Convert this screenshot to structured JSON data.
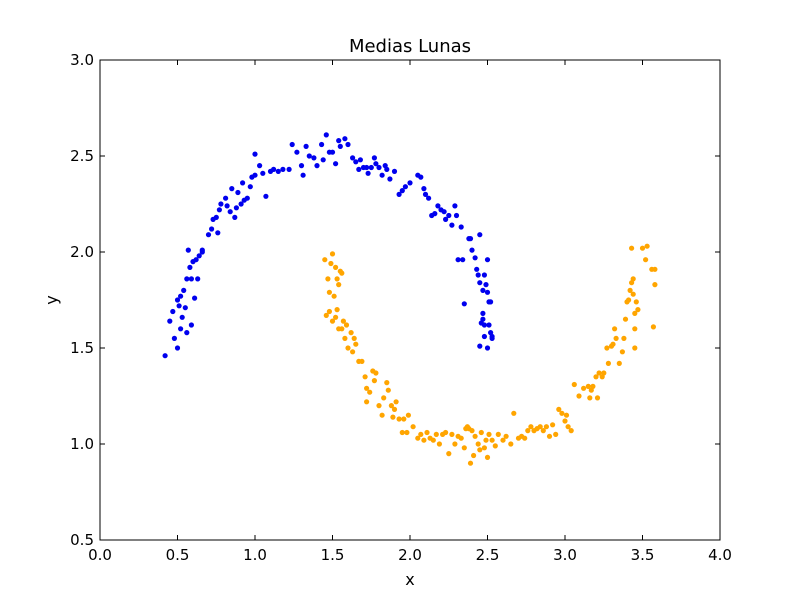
{
  "chart_data": {
    "type": "scatter",
    "title": "Medias Lunas",
    "xlabel": "x",
    "ylabel": "y",
    "xlim": [
      0.0,
      4.0
    ],
    "ylim": [
      0.5,
      3.0
    ],
    "grid": false,
    "xticks": [
      "0.0",
      "0.5",
      "1.0",
      "1.5",
      "2.0",
      "2.5",
      "3.0",
      "3.5",
      "4.0"
    ],
    "yticks": [
      "0.5",
      "1.0",
      "1.5",
      "2.0",
      "2.5",
      "3.0"
    ],
    "series": [
      {
        "color": "#0000ee",
        "points": [
          [
            0.42,
            1.46
          ],
          [
            0.45,
            1.64
          ],
          [
            0.47,
            1.69
          ],
          [
            0.48,
            1.55
          ],
          [
            0.5,
            1.5
          ],
          [
            0.5,
            1.75
          ],
          [
            0.51,
            1.72
          ],
          [
            0.52,
            1.6
          ],
          [
            0.52,
            1.77
          ],
          [
            0.53,
            1.66
          ],
          [
            0.54,
            1.8
          ],
          [
            0.55,
            1.71
          ],
          [
            0.56,
            1.58
          ],
          [
            0.56,
            1.86
          ],
          [
            0.57,
            2.01
          ],
          [
            0.58,
            1.92
          ],
          [
            0.59,
            1.62
          ],
          [
            0.59,
            1.86
          ],
          [
            0.6,
            1.95
          ],
          [
            0.61,
            1.76
          ],
          [
            0.62,
            1.96
          ],
          [
            0.63,
            1.86
          ],
          [
            0.64,
            1.98
          ],
          [
            0.66,
            2.0
          ],
          [
            0.66,
            2.01
          ],
          [
            0.7,
            2.09
          ],
          [
            0.72,
            2.12
          ],
          [
            0.73,
            2.17
          ],
          [
            0.75,
            2.18
          ],
          [
            0.76,
            2.1
          ],
          [
            0.77,
            2.22
          ],
          [
            0.78,
            2.25
          ],
          [
            0.81,
            2.28
          ],
          [
            0.82,
            2.24
          ],
          [
            0.84,
            2.21
          ],
          [
            0.85,
            2.33
          ],
          [
            0.87,
            2.18
          ],
          [
            0.88,
            2.23
          ],
          [
            0.89,
            2.31
          ],
          [
            0.91,
            2.25
          ],
          [
            0.92,
            2.36
          ],
          [
            0.93,
            2.27
          ],
          [
            0.95,
            2.28
          ],
          [
            0.97,
            2.34
          ],
          [
            0.98,
            2.39
          ],
          [
            1.0,
            2.51
          ],
          [
            1.0,
            2.4
          ],
          [
            1.03,
            2.45
          ],
          [
            1.05,
            2.41
          ],
          [
            1.07,
            2.29
          ],
          [
            1.1,
            2.42
          ],
          [
            1.12,
            2.43
          ],
          [
            1.15,
            2.42
          ],
          [
            1.18,
            2.43
          ],
          [
            1.22,
            2.43
          ],
          [
            1.24,
            2.56
          ],
          [
            1.27,
            2.52
          ],
          [
            1.3,
            2.45
          ],
          [
            1.31,
            2.4
          ],
          [
            1.33,
            2.55
          ],
          [
            1.35,
            2.5
          ],
          [
            1.38,
            2.49
          ],
          [
            1.4,
            2.45
          ],
          [
            1.43,
            2.56
          ],
          [
            1.44,
            2.48
          ],
          [
            1.46,
            2.61
          ],
          [
            1.48,
            2.52
          ],
          [
            1.5,
            2.52
          ],
          [
            1.52,
            2.46
          ],
          [
            1.54,
            2.58
          ],
          [
            1.55,
            2.55
          ],
          [
            1.58,
            2.59
          ],
          [
            1.6,
            2.56
          ],
          [
            1.63,
            2.49
          ],
          [
            1.65,
            2.47
          ],
          [
            1.67,
            2.43
          ],
          [
            1.68,
            2.48
          ],
          [
            1.7,
            2.44
          ],
          [
            1.72,
            2.44
          ],
          [
            1.73,
            2.41
          ],
          [
            1.75,
            2.44
          ],
          [
            1.77,
            2.49
          ],
          [
            1.78,
            2.46
          ],
          [
            1.8,
            2.44
          ],
          [
            1.82,
            2.4
          ],
          [
            1.84,
            2.45
          ],
          [
            1.85,
            2.43
          ],
          [
            1.87,
            2.38
          ],
          [
            1.9,
            2.42
          ],
          [
            1.93,
            2.3
          ],
          [
            1.95,
            2.32
          ],
          [
            1.97,
            2.34
          ],
          [
            2.0,
            2.36
          ],
          [
            2.05,
            2.4
          ],
          [
            2.07,
            2.39
          ],
          [
            2.09,
            2.33
          ],
          [
            2.1,
            2.3
          ],
          [
            2.12,
            2.28
          ],
          [
            2.14,
            2.19
          ],
          [
            2.16,
            2.2
          ],
          [
            2.18,
            2.24
          ],
          [
            2.2,
            2.22
          ],
          [
            2.22,
            2.21
          ],
          [
            2.23,
            2.17
          ],
          [
            2.25,
            2.19
          ],
          [
            2.27,
            2.14
          ],
          [
            2.29,
            2.24
          ],
          [
            2.3,
            2.19
          ],
          [
            2.31,
            1.96
          ],
          [
            2.33,
            2.13
          ],
          [
            2.34,
            1.96
          ],
          [
            2.35,
            1.73
          ],
          [
            2.38,
            2.07
          ],
          [
            2.39,
            2.07
          ],
          [
            2.4,
            2.01
          ],
          [
            2.42,
            1.97
          ],
          [
            2.43,
            1.91
          ],
          [
            2.44,
            1.88
          ],
          [
            2.45,
            2.09
          ],
          [
            2.45,
            1.84
          ],
          [
            2.46,
            1.63
          ],
          [
            2.47,
            1.8
          ],
          [
            2.47,
            1.68
          ],
          [
            2.48,
            1.62
          ],
          [
            2.48,
            1.56
          ],
          [
            2.48,
            1.88
          ],
          [
            2.49,
            1.83
          ],
          [
            2.5,
            1.96
          ],
          [
            2.5,
            1.79
          ],
          [
            2.51,
            1.74
          ],
          [
            2.51,
            1.62
          ],
          [
            2.52,
            1.58
          ],
          [
            2.52,
            1.74
          ],
          [
            2.53,
            1.56
          ],
          [
            2.53,
            1.55
          ],
          [
            2.45,
            1.51
          ],
          [
            2.5,
            1.5
          ],
          [
            2.47,
            1.65
          ]
        ]
      },
      {
        "color": "#ffa500",
        "points": [
          [
            1.45,
            1.96
          ],
          [
            1.47,
            1.86
          ],
          [
            1.48,
            1.79
          ],
          [
            1.49,
            1.94
          ],
          [
            1.5,
            1.99
          ],
          [
            1.51,
            1.77
          ],
          [
            1.52,
            1.92
          ],
          [
            1.53,
            1.86
          ],
          [
            1.54,
            1.83
          ],
          [
            1.55,
            1.9
          ],
          [
            1.56,
            1.89
          ],
          [
            1.46,
            1.67
          ],
          [
            1.48,
            1.69
          ],
          [
            1.5,
            1.64
          ],
          [
            1.52,
            1.66
          ],
          [
            1.53,
            1.7
          ],
          [
            1.54,
            1.6
          ],
          [
            1.56,
            1.6
          ],
          [
            1.57,
            1.64
          ],
          [
            1.58,
            1.55
          ],
          [
            1.59,
            1.62
          ],
          [
            1.6,
            1.5
          ],
          [
            1.62,
            1.58
          ],
          [
            1.63,
            1.48
          ],
          [
            1.64,
            1.55
          ],
          [
            1.65,
            1.52
          ],
          [
            1.67,
            1.43
          ],
          [
            1.69,
            1.43
          ],
          [
            1.71,
            1.35
          ],
          [
            1.72,
            1.29
          ],
          [
            1.72,
            1.22
          ],
          [
            1.74,
            1.27
          ],
          [
            1.76,
            1.38
          ],
          [
            1.77,
            1.33
          ],
          [
            1.78,
            1.37
          ],
          [
            1.8,
            1.2
          ],
          [
            1.82,
            1.15
          ],
          [
            1.83,
            1.24
          ],
          [
            1.85,
            1.32
          ],
          [
            1.86,
            1.28
          ],
          [
            1.88,
            1.2
          ],
          [
            1.89,
            1.14
          ],
          [
            1.9,
            1.18
          ],
          [
            1.91,
            1.22
          ],
          [
            1.93,
            1.13
          ],
          [
            1.95,
            1.06
          ],
          [
            1.96,
            1.13
          ],
          [
            1.98,
            1.06
          ],
          [
            1.99,
            1.15
          ],
          [
            2.02,
            1.09
          ],
          [
            2.05,
            1.03
          ],
          [
            2.07,
            1.05
          ],
          [
            2.09,
            1.02
          ],
          [
            2.11,
            1.06
          ],
          [
            2.13,
            1.03
          ],
          [
            2.15,
            1.02
          ],
          [
            2.17,
            1.05
          ],
          [
            2.19,
            1.0
          ],
          [
            2.21,
            1.05
          ],
          [
            2.23,
            1.06
          ],
          [
            2.25,
            0.95
          ],
          [
            2.27,
            1.05
          ],
          [
            2.29,
            1.0
          ],
          [
            2.31,
            1.04
          ],
          [
            2.33,
            1.03
          ],
          [
            2.35,
            0.98
          ],
          [
            2.36,
            1.08
          ],
          [
            2.37,
            1.09
          ],
          [
            2.38,
            1.08
          ],
          [
            2.39,
            0.9
          ],
          [
            2.4,
            1.07
          ],
          [
            2.41,
            0.94
          ],
          [
            2.42,
            1.04
          ],
          [
            2.44,
            1.0
          ],
          [
            2.45,
            0.97
          ],
          [
            2.46,
            1.06
          ],
          [
            2.48,
            0.98
          ],
          [
            2.49,
            1.02
          ],
          [
            2.5,
            0.93
          ],
          [
            2.51,
            1.05
          ],
          [
            2.53,
            1.02
          ],
          [
            2.55,
            0.99
          ],
          [
            2.57,
            1.05
          ],
          [
            2.6,
            1.02
          ],
          [
            2.62,
            1.04
          ],
          [
            2.65,
            1.0
          ],
          [
            2.67,
            1.16
          ],
          [
            2.7,
            1.03
          ],
          [
            2.72,
            1.04
          ],
          [
            2.74,
            1.03
          ],
          [
            2.76,
            1.07
          ],
          [
            2.78,
            1.09
          ],
          [
            2.8,
            1.07
          ],
          [
            2.82,
            1.08
          ],
          [
            2.84,
            1.09
          ],
          [
            2.86,
            1.07
          ],
          [
            2.88,
            1.09
          ],
          [
            2.9,
            1.04
          ],
          [
            2.92,
            1.1
          ],
          [
            2.94,
            1.05
          ],
          [
            2.96,
            1.18
          ],
          [
            2.98,
            1.16
          ],
          [
            3.0,
            1.12
          ],
          [
            3.01,
            1.15
          ],
          [
            3.02,
            1.09
          ],
          [
            3.04,
            1.07
          ],
          [
            3.06,
            1.31
          ],
          [
            3.09,
            1.25
          ],
          [
            3.12,
            1.29
          ],
          [
            3.15,
            1.3
          ],
          [
            3.16,
            1.24
          ],
          [
            3.17,
            1.28
          ],
          [
            3.18,
            1.3
          ],
          [
            3.2,
            1.35
          ],
          [
            3.21,
            1.24
          ],
          [
            3.22,
            1.37
          ],
          [
            3.24,
            1.35
          ],
          [
            3.25,
            1.37
          ],
          [
            3.27,
            1.5
          ],
          [
            3.28,
            1.42
          ],
          [
            3.3,
            1.51
          ],
          [
            3.31,
            1.52
          ],
          [
            3.32,
            1.6
          ],
          [
            3.33,
            1.55
          ],
          [
            3.35,
            1.42
          ],
          [
            3.37,
            1.48
          ],
          [
            3.38,
            1.55
          ],
          [
            3.39,
            1.65
          ],
          [
            3.4,
            1.74
          ],
          [
            3.41,
            1.75
          ],
          [
            3.42,
            1.8
          ],
          [
            3.43,
            1.84
          ],
          [
            3.44,
            1.78
          ],
          [
            3.44,
            1.86
          ],
          [
            3.45,
            1.6
          ],
          [
            3.45,
            1.68
          ],
          [
            3.45,
            1.5
          ],
          [
            3.46,
            1.74
          ],
          [
            3.47,
            1.7
          ],
          [
            3.43,
            2.02
          ],
          [
            3.5,
            2.02
          ],
          [
            3.53,
            2.03
          ],
          [
            3.56,
            1.91
          ],
          [
            3.58,
            1.91
          ],
          [
            3.58,
            1.83
          ],
          [
            3.57,
            1.61
          ],
          [
            3.52,
            1.96
          ]
        ]
      }
    ]
  }
}
